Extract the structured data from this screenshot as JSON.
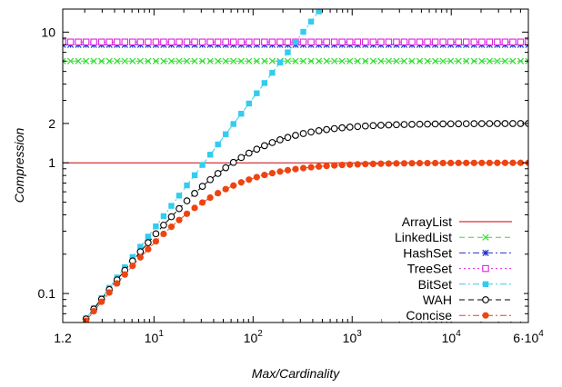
{
  "chart_data": {
    "type": "line",
    "xlabel": "Max/Cardinality",
    "ylabel": "Compression",
    "xscale": "log",
    "yscale": "log",
    "xlim": [
      1.2,
      60000
    ],
    "ylim": [
      0.06,
      15
    ],
    "x_ticks": [
      {
        "value": 1.2,
        "label": "1.2"
      },
      {
        "value": 10,
        "label": "10",
        "sup": "1"
      },
      {
        "value": 100,
        "label": "10",
        "sup": "2"
      },
      {
        "value": 1000,
        "label": "10",
        "sup": "3"
      },
      {
        "value": 10000,
        "label": "10",
        "sup": "4"
      },
      {
        "value": 60000,
        "label": "6·10",
        "sup": "4"
      }
    ],
    "y_ticks": [
      {
        "value": 0.1,
        "label": "0.1"
      },
      {
        "value": 1,
        "label": "1"
      },
      {
        "value": 2,
        "label": "2"
      },
      {
        "value": 10,
        "label": "10"
      }
    ],
    "legend_position": "bottom-right",
    "grid": false,
    "series": [
      {
        "name": "ArrayList",
        "color": "#cc0000",
        "style": "solid",
        "marker": "none",
        "kind": "const",
        "value": 1.0
      },
      {
        "name": "LinkedList",
        "color": "#33dd33",
        "style": "dashed",
        "marker": "x",
        "kind": "const",
        "value": 6.0
      },
      {
        "name": "HashSet",
        "color": "#2233cc",
        "style": "dash-dot",
        "marker": "star",
        "kind": "const",
        "value": 8.0
      },
      {
        "name": "TreeSet",
        "color": "#dd22dd",
        "style": "dotted",
        "marker": "open-square",
        "kind": "const",
        "value": 8.4
      },
      {
        "name": "BitSet",
        "color": "#33ccee",
        "style": "dash-dot",
        "marker": "filled-square",
        "kind": "linear",
        "coef": 0.03125
      },
      {
        "name": "WAH",
        "color": "#000000",
        "style": "dashed",
        "marker": "open-circle",
        "kind": "saturating",
        "limit": 2.0
      },
      {
        "name": "Concise",
        "color": "#ee4411",
        "style": "dash-dot",
        "marker": "filled-circle",
        "kind": "saturating",
        "limit": 1.0
      }
    ]
  }
}
